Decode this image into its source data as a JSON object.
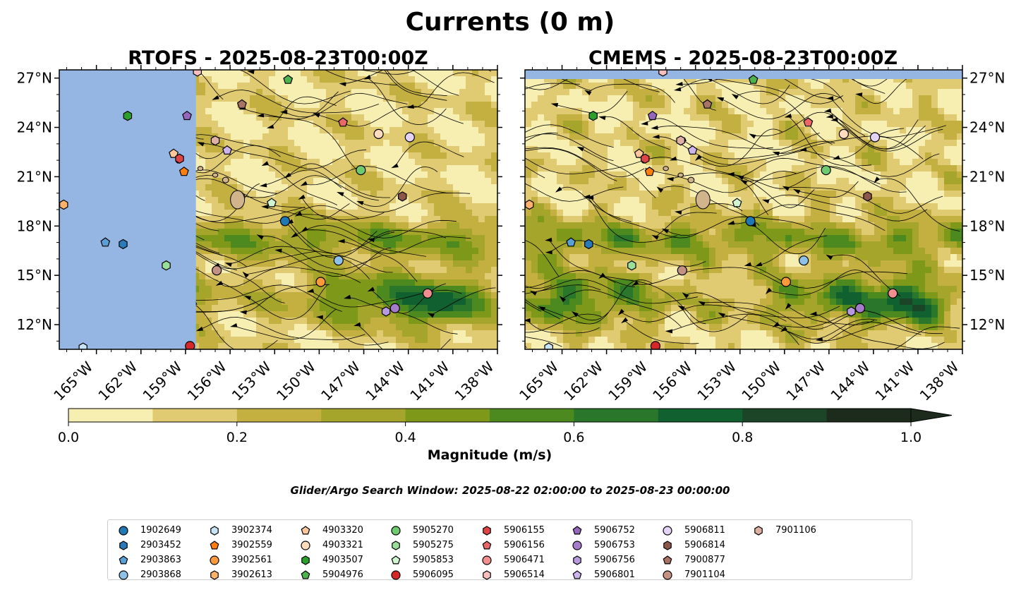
{
  "chart_data": {
    "type": "map",
    "title": "Currents (0 m)",
    "panels": [
      {
        "title": "RTOFS - 2025-08-23T00:00Z",
        "lat_range": [
          10.5,
          27.5
        ],
        "lon_range": [
          -167.5,
          -138
        ],
        "land_fill_west_of": -158.3
      },
      {
        "title": "CMEMS - 2025-08-23T00:00Z",
        "lat_range": [
          10.5,
          27.5
        ],
        "lon_range": [
          -167.5,
          -138
        ]
      }
    ],
    "x_ticks": [
      "165°W",
      "162°W",
      "159°W",
      "156°W",
      "153°W",
      "150°W",
      "147°W",
      "144°W",
      "141°W",
      "138°W"
    ],
    "x_tick_values": [
      -165,
      -162,
      -159,
      -156,
      -153,
      -150,
      -147,
      -144,
      -141,
      -138
    ],
    "y_ticks": [
      "27°N",
      "24°N",
      "21°N",
      "18°N",
      "15°N",
      "12°N"
    ],
    "y_tick_values": [
      27,
      24,
      21,
      18,
      15,
      12
    ],
    "colorbar": {
      "label": "Magnitude (m/s)",
      "ticks": [
        "0.0",
        "0.2",
        "0.4",
        "0.6",
        "0.8",
        "1.0"
      ],
      "levels": [
        0.0,
        0.1,
        0.2,
        0.3,
        0.4,
        0.5,
        0.6,
        0.7,
        0.8,
        0.9,
        1.0
      ],
      "colors": [
        "#f7efb1",
        "#e1cb72",
        "#c4b041",
        "#a4a52a",
        "#7e981a",
        "#4c8a20",
        "#2a762a",
        "#11602f",
        "#1c4528",
        "#1c2b1c"
      ],
      "extend": "max"
    },
    "subtitle": "Glider/Argo Search Window: 2025-08-22 02:00:00 to 2025-08-23 00:00:00",
    "floats": [
      {
        "id": "1902649",
        "marker": "circle",
        "color": "#1f77b4",
        "lon": -152.3,
        "lat": 18.3
      },
      {
        "id": "2903452",
        "marker": "hexagon",
        "color": "#2a79b8",
        "lon": -163.2,
        "lat": 16.9
      },
      {
        "id": "2903863",
        "marker": "pentagon",
        "color": "#5aa0d4",
        "lon": -164.4,
        "lat": 17.0
      },
      {
        "id": "2903868",
        "marker": "circle",
        "color": "#8fc0e6",
        "lon": -148.7,
        "lat": 15.9
      },
      {
        "id": "3902374",
        "marker": "hexagon",
        "color": "#c7e4f7",
        "lon": -165.9,
        "lat": 10.6
      },
      {
        "id": "3902559",
        "marker": "pentagon",
        "color": "#ff7f0e",
        "lon": -159.1,
        "lat": 21.3
      },
      {
        "id": "3902561",
        "marker": "circle",
        "color": "#ff9a3c",
        "lon": -149.9,
        "lat": 14.6
      },
      {
        "id": "3902613",
        "marker": "hexagon",
        "color": "#ffb26b",
        "lon": -167.2,
        "lat": 19.3
      },
      {
        "id": "4903320",
        "marker": "pentagon",
        "color": "#ffc79b",
        "lon": -159.8,
        "lat": 22.4
      },
      {
        "id": "4903321",
        "marker": "circle",
        "color": "#ffdcbe",
        "lon": -146.0,
        "lat": 23.6
      },
      {
        "id": "4903507",
        "marker": "hexagon",
        "color": "#2ca02c",
        "lon": -162.9,
        "lat": 24.7
      },
      {
        "id": "5904976",
        "marker": "pentagon",
        "color": "#4db34d",
        "lon": -152.1,
        "lat": 26.9
      },
      {
        "id": "5905270",
        "marker": "circle",
        "color": "#6fc96f",
        "lon": -147.2,
        "lat": 21.4
      },
      {
        "id": "5905275",
        "marker": "hexagon",
        "color": "#99de99",
        "lon": -160.3,
        "lat": 15.6
      },
      {
        "id": "5905853",
        "marker": "pentagon",
        "color": "#d0f5d0",
        "lon": -153.2,
        "lat": 19.4
      },
      {
        "id": "5906095",
        "marker": "circle",
        "color": "#d62728",
        "lon": -158.7,
        "lat": 10.7
      },
      {
        "id": "5906155",
        "marker": "hexagon",
        "color": "#e04343",
        "lon": -159.4,
        "lat": 22.1
      },
      {
        "id": "5906156",
        "marker": "pentagon",
        "color": "#ea6767",
        "lon": -148.4,
        "lat": 24.3
      },
      {
        "id": "5906471",
        "marker": "circle",
        "color": "#f28e8e",
        "lon": -142.7,
        "lat": 13.9
      },
      {
        "id": "5906514",
        "marker": "hexagon",
        "color": "#f9bfbf",
        "lon": -158.2,
        "lat": 27.4
      },
      {
        "id": "5906752",
        "marker": "pentagon",
        "color": "#9467bd",
        "lon": -158.9,
        "lat": 24.7
      },
      {
        "id": "5906753",
        "marker": "circle",
        "color": "#a57ccc",
        "lon": -144.9,
        "lat": 13.0
      },
      {
        "id": "5906756",
        "marker": "hexagon",
        "color": "#b79add",
        "lon": -145.5,
        "lat": 12.8
      },
      {
        "id": "5906801",
        "marker": "pentagon",
        "color": "#cdb4ec",
        "lon": -156.2,
        "lat": 22.6
      },
      {
        "id": "5906811",
        "marker": "circle",
        "color": "#e3d3f7",
        "lon": -143.9,
        "lat": 23.4
      },
      {
        "id": "5906814",
        "marker": "hexagon",
        "color": "#8c564b",
        "lon": -144.4,
        "lat": 19.8
      },
      {
        "id": "7900877",
        "marker": "pentagon",
        "color": "#a87365",
        "lon": -155.2,
        "lat": 25.4
      },
      {
        "id": "7901104",
        "marker": "circle",
        "color": "#c49283",
        "lon": -156.9,
        "lat": 15.3
      },
      {
        "id": "7901106",
        "marker": "hexagon",
        "color": "#deb1a4",
        "lon": -157.0,
        "lat": 23.2
      }
    ]
  },
  "colors": {
    "land": "#d2b48c",
    "ocean_mask": "#95b5e3"
  }
}
